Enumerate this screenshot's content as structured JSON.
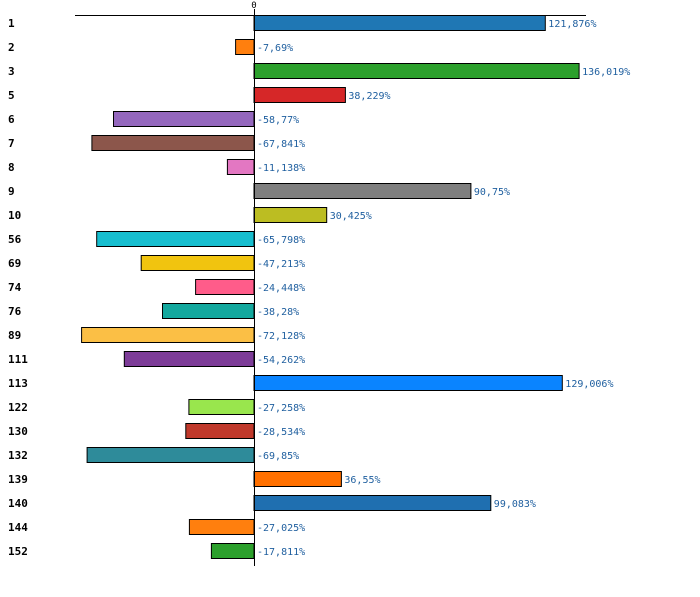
{
  "chart_data": {
    "type": "bar",
    "orientation": "horizontal",
    "title": "",
    "xlabel": "",
    "ylabel": "",
    "xlim": [
      -74.5,
      136.019
    ],
    "zero_tick_label": "0",
    "value_suffix": "%",
    "decimal_separator": ",",
    "categories": [
      "1",
      "2",
      "3",
      "5",
      "6",
      "7",
      "8",
      "9",
      "10",
      "56",
      "69",
      "74",
      "76",
      "89",
      "111",
      "113",
      "122",
      "130",
      "132",
      "139",
      "140",
      "144",
      "152"
    ],
    "values": [
      121.876,
      -7.69,
      136.019,
      38.229,
      -58.77,
      -67.841,
      -11.138,
      90.75,
      30.425,
      -65.798,
      -47.213,
      -24.448,
      -38.28,
      -72.128,
      -54.262,
      129.006,
      -27.258,
      -28.534,
      -69.85,
      36.55,
      99.083,
      -27.025,
      -17.811
    ],
    "value_labels": [
      "121,876%",
      "-7,69%",
      "136,019%",
      "38,229%",
      "-58,77%",
      "-67,841%",
      "-11,138%",
      "90,75%",
      "30,425%",
      "-65,798%",
      "-47,213%",
      "-24,448%",
      "-38,28%",
      "-72,128%",
      "-54,262%",
      "129,006%",
      "-27,258%",
      "-28,534%",
      "-69,85%",
      "36,55%",
      "99,083%",
      "-27,025%",
      "-17,811%"
    ],
    "colors": [
      "#1f77b4",
      "#ff7f0e",
      "#2ca02c",
      "#d62728",
      "#9467bd",
      "#8c564b",
      "#e377c2",
      "#7f7f7f",
      "#bcbd22",
      "#17becf",
      "#f1c40f",
      "#ff5c8a",
      "#13a89e",
      "#fbbf45",
      "#7d3c98",
      "#0a84ff",
      "#99e64d",
      "#c0392b",
      "#2e8b9a",
      "#ff7000",
      "#1f6fb0",
      "#ff7f0e",
      "#2ca02c"
    ]
  }
}
